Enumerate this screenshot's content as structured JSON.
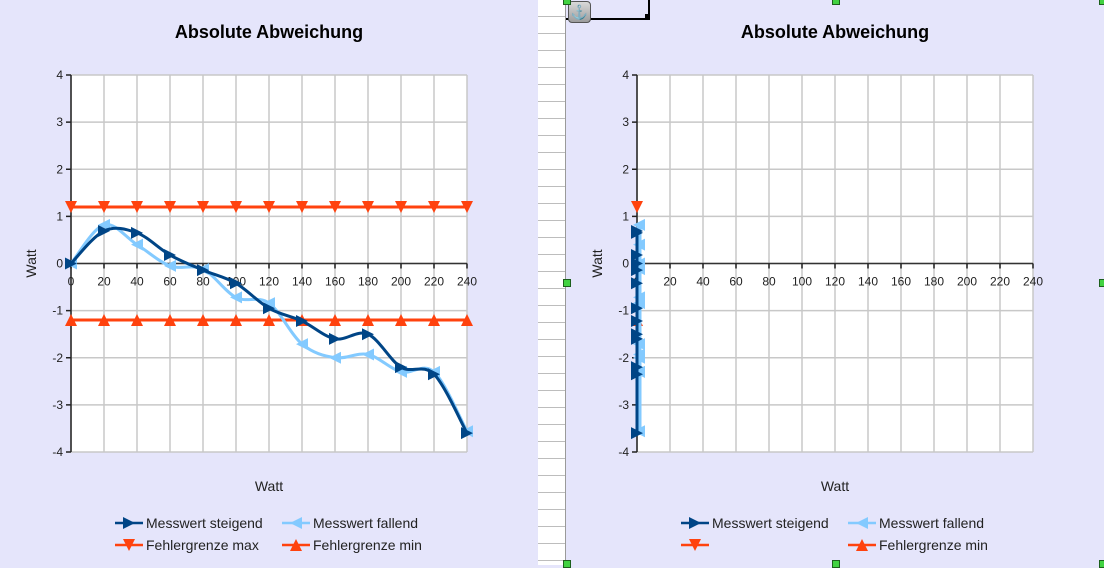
{
  "colors": {
    "background": "#e5e5fb",
    "plot_background": "#ffffff",
    "grid": "#c8c8c8",
    "series_steigend": "#004586",
    "series_fallend": "#83caff",
    "series_max": "#ff420e",
    "series_min": "#ff420e"
  },
  "left_chart": {
    "title": "Absolute Abweichung",
    "xlabel": "Watt",
    "ylabel": "Watt",
    "legend": [
      "Messwert steigend",
      "Messwert fallend",
      "Fehlergrenze max",
      "Fehlergrenze min"
    ]
  },
  "right_chart": {
    "title": "Absolute Abweichung",
    "xlabel": "Watt",
    "ylabel": "Watt",
    "legend": [
      "Messwert steigend",
      "Messwert fallend",
      "",
      "Fehlergrenze min"
    ]
  },
  "chart_data": [
    {
      "type": "line",
      "title": "Absolute Abweichung",
      "xlabel": "Watt",
      "ylabel": "Watt",
      "xlim": [
        0,
        240
      ],
      "ylim": [
        -4,
        4
      ],
      "x_ticks": [
        0,
        20,
        40,
        60,
        80,
        100,
        120,
        140,
        160,
        180,
        200,
        220,
        240
      ],
      "y_ticks": [
        -4,
        -3,
        -2,
        -1,
        0,
        1,
        2,
        3,
        4
      ],
      "grid": true,
      "legend_position": "bottom",
      "x": [
        0,
        20,
        40,
        60,
        80,
        100,
        120,
        140,
        160,
        180,
        200,
        220,
        240
      ],
      "series": [
        {
          "name": "Messwert steigend",
          "marker": "triangle-right",
          "values": [
            0,
            0.69,
            0.65,
            0.18,
            -0.14,
            -0.42,
            -0.95,
            -1.22,
            -1.6,
            -1.5,
            -2.2,
            -2.35,
            -3.6
          ]
        },
        {
          "name": "Messwert fallend",
          "marker": "triangle-left",
          "values": [
            0,
            0.82,
            0.4,
            -0.05,
            -0.12,
            -0.72,
            -0.84,
            -1.71,
            -2.0,
            -1.93,
            -2.3,
            -2.3,
            -3.56
          ]
        },
        {
          "name": "Fehlergrenze max",
          "marker": "triangle-down",
          "values": [
            1.2,
            1.2,
            1.2,
            1.2,
            1.2,
            1.2,
            1.2,
            1.2,
            1.2,
            1.2,
            1.2,
            1.2,
            1.2
          ]
        },
        {
          "name": "Fehlergrenze min",
          "marker": "triangle-up",
          "values": [
            -1.2,
            -1.2,
            -1.2,
            -1.2,
            -1.2,
            -1.2,
            -1.2,
            -1.2,
            -1.2,
            -1.2,
            -1.2,
            -1.2,
            -1.2
          ]
        }
      ]
    },
    {
      "type": "line",
      "title": "Absolute Abweichung",
      "xlabel": "Watt",
      "ylabel": "Watt",
      "xlim": [
        0,
        240
      ],
      "ylim": [
        -4,
        4
      ],
      "x_ticks": [
        0,
        20,
        40,
        60,
        80,
        100,
        120,
        140,
        160,
        180,
        200,
        220,
        240
      ],
      "y_ticks": [
        -4,
        -3,
        -2,
        -1,
        0,
        1,
        2,
        3,
        4
      ],
      "grid": true,
      "legend_position": "bottom",
      "note": "all points plotted at x=0 (collapsed category axis)",
      "x": [
        0,
        0,
        0,
        0,
        0,
        0,
        0,
        0,
        0,
        0,
        0,
        0,
        0
      ],
      "series": [
        {
          "name": "Messwert steigend",
          "marker": "triangle-right",
          "values": [
            0.69,
            0.65,
            0.18,
            0,
            -0.14,
            -0.42,
            -0.95,
            -1.22,
            -1.6,
            -1.5,
            -2.2,
            -2.35,
            -3.6
          ]
        },
        {
          "name": "Messwert fallend",
          "marker": "triangle-left",
          "values": [
            0.82,
            0.4,
            -0.05,
            0,
            -0.12,
            -0.72,
            -0.84,
            -1.71,
            -2.0,
            -1.93,
            -2.3,
            -2.3,
            -3.56
          ]
        },
        {
          "name": "",
          "marker": "triangle-down",
          "values": [
            1.2
          ]
        },
        {
          "name": "Fehlergrenze min",
          "marker": "triangle-up",
          "values": [
            -1.2
          ]
        }
      ]
    }
  ]
}
